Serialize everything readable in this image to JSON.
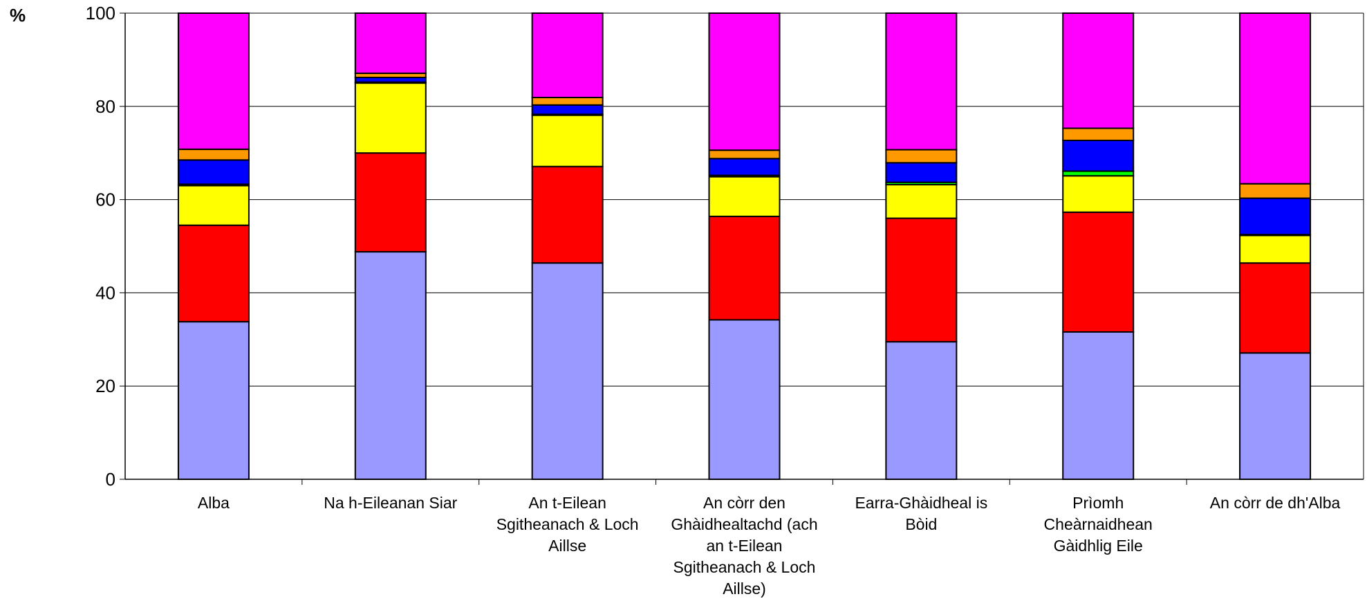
{
  "chart_data": {
    "type": "bar",
    "stacked": true,
    "ylabel": "%",
    "ylim": [
      0,
      100
    ],
    "yticks": [
      0,
      20,
      40,
      60,
      80,
      100
    ],
    "grid": true,
    "categories": [
      "Alba",
      "Na h-Eileanan Siar",
      "An t-Eilean Sgitheanach & Loch Aillse",
      "An còrr den Ghàidhealtachd (ach an t-Eilean Sgitheanach & Loch Aillse)",
      "Earra-Ghàidheal is Bòid",
      "Prìomh Cheàrnaidhean Gàidhlig Eile",
      "An còrr de dh'Alba"
    ],
    "category_lines": [
      [
        "Alba"
      ],
      [
        "Na h-Eileanan Siar"
      ],
      [
        "An t-Eilean",
        "Sgitheanach & Loch",
        "Aillse"
      ],
      [
        "An còrr den",
        "Ghàidhealtachd (ach",
        "an t-Eilean",
        "Sgitheanach & Loch",
        "Aillse)"
      ],
      [
        "Earra-Ghàidheal is",
        "Bòid"
      ],
      [
        "Prìomh",
        "Cheàrnaidhean",
        "Gàidhlig Eile"
      ],
      [
        "An còrr de dh'Alba"
      ]
    ],
    "series": [
      {
        "color": "#9999ff",
        "values": [
          33.8,
          48.8,
          46.4,
          34.2,
          29.5,
          31.6,
          27.1
        ]
      },
      {
        "color": "#ff0000",
        "values": [
          20.7,
          21.2,
          20.7,
          22.2,
          26.5,
          25.7,
          19.3
        ]
      },
      {
        "color": "#ffff00",
        "values": [
          8.5,
          15.0,
          11.0,
          8.5,
          7.2,
          7.8,
          5.9
        ]
      },
      {
        "color": "#00ff00",
        "values": [
          0.3,
          0.2,
          0.2,
          0.3,
          0.5,
          1.0,
          0.2
        ]
      },
      {
        "color": "#0000ff",
        "values": [
          5.2,
          1.0,
          2.0,
          3.6,
          4.2,
          6.6,
          7.8
        ]
      },
      {
        "color": "#ff9900",
        "values": [
          2.3,
          0.9,
          1.6,
          1.8,
          2.8,
          2.6,
          3.1
        ]
      },
      {
        "color": "#ff00ff",
        "values": [
          29.2,
          12.9,
          18.1,
          29.4,
          29.3,
          24.7,
          36.6
        ]
      }
    ]
  }
}
